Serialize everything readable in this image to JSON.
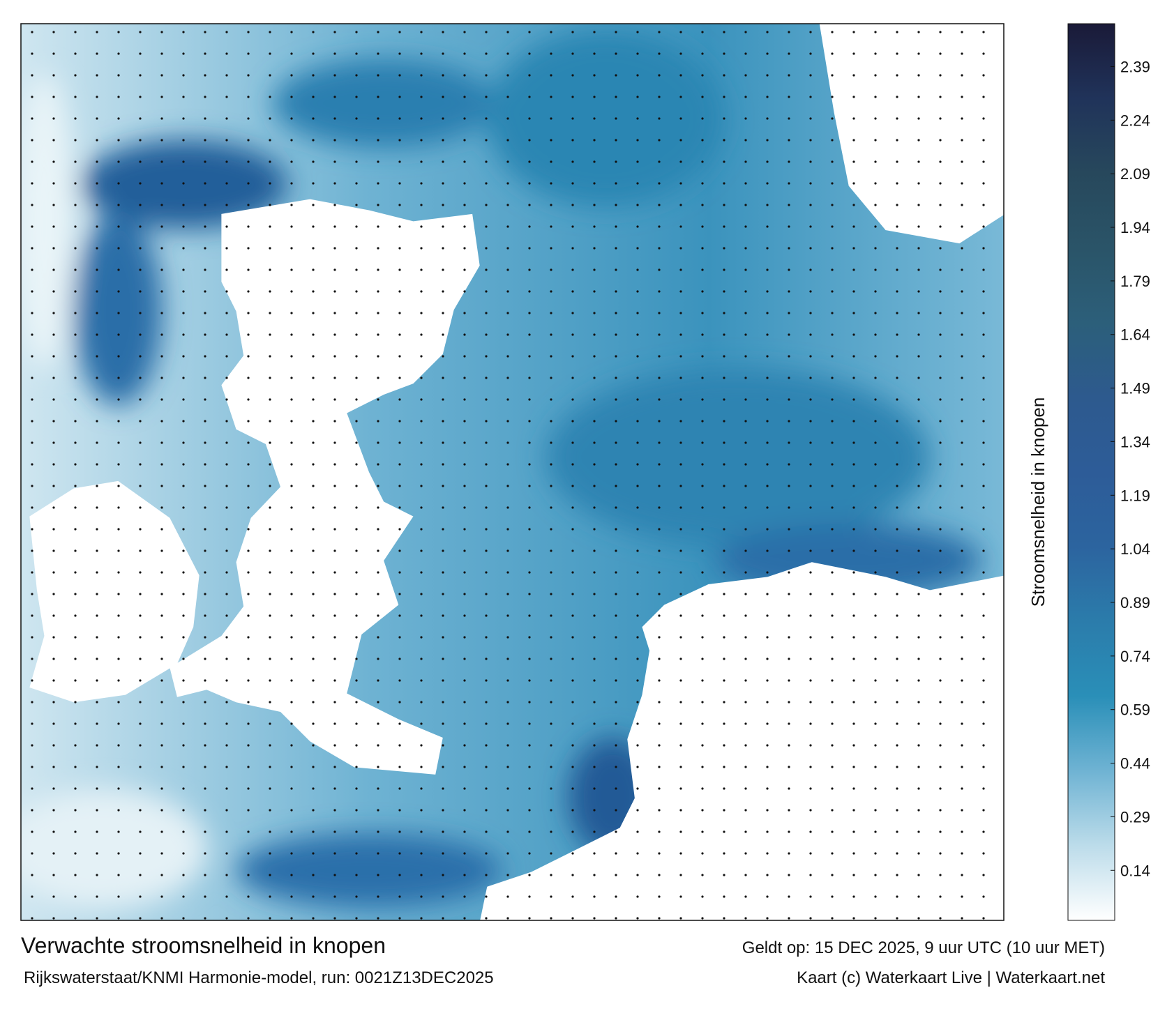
{
  "map": {
    "title": "Verwachte stroomsnelheid in knopen",
    "subtitle": "Rijkswaterstaat/KNMI Harmonie-model, run: 0021Z13DEC2025",
    "valid_time": "Geldt op: 15 DEC 2025, 9 uur UTC (10 uur MET)",
    "credit": "Kaart (c) Waterkaart Live | Waterkaart.net",
    "colorbar": {
      "label": "Stroomsnelheid in knopen",
      "lim": [
        0,
        2.51
      ],
      "ticks": [
        0.14,
        0.29,
        0.44,
        0.59,
        0.74,
        0.89,
        1.04,
        1.19,
        1.34,
        1.49,
        1.64,
        1.79,
        1.94,
        2.09,
        2.24,
        2.39
      ],
      "colors": [
        "#ffffff",
        "#bcdcea",
        "#6fb3d3",
        "#2a8fb8",
        "#2b7cab",
        "#2c649f",
        "#2d5c98",
        "#2d5a8e",
        "#2c5f7a",
        "#2a5468",
        "#27485c",
        "#20335a",
        "#1a1a38"
      ]
    }
  }
}
